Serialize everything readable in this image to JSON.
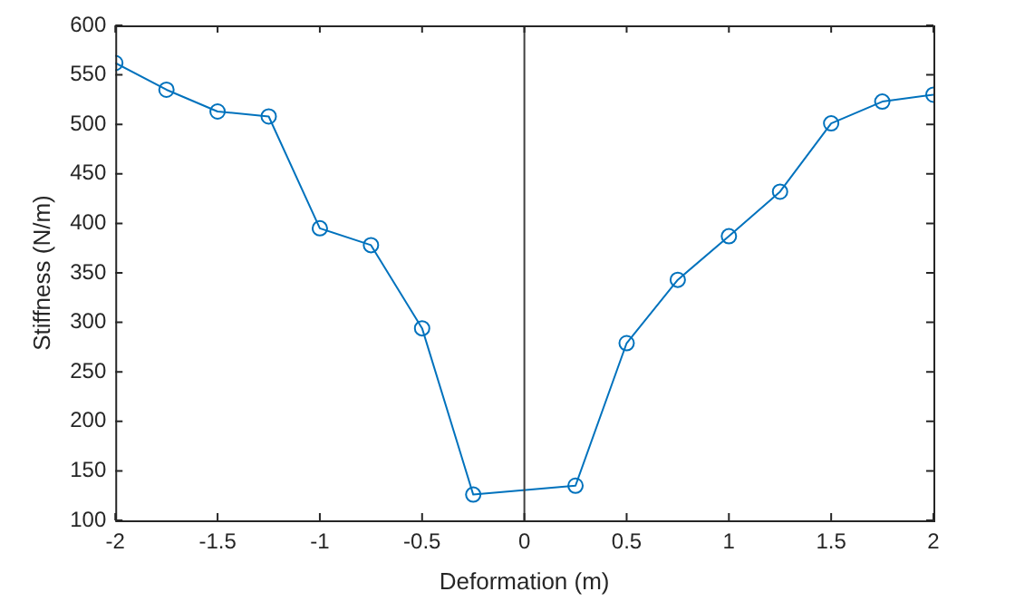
{
  "chart_data": {
    "type": "line",
    "xlabel": "Deformation (m)",
    "ylabel": "Stiffness (N/m)",
    "x": [
      -2,
      -1.75,
      -1.5,
      -1.25,
      -1,
      -0.75,
      -0.5,
      -0.25,
      0.25,
      0.5,
      0.75,
      1,
      1.25,
      1.5,
      1.75,
      2
    ],
    "series": [
      {
        "color": "#0072bd",
        "values": [
          562,
          535,
          513,
          508,
          395,
          378,
          294,
          126,
          135,
          279,
          343,
          387,
          432,
          501,
          523,
          530
        ]
      }
    ],
    "xlim": [
      -2,
      2
    ],
    "xticks": [
      -2,
      -1.5,
      -1,
      -0.5,
      0,
      0.5,
      1,
      1.5,
      2
    ],
    "ylim": [
      100,
      600
    ],
    "yticks": [
      100,
      150,
      200,
      250,
      300,
      350,
      400,
      450,
      500,
      550,
      600
    ],
    "ref_lines": [
      {
        "axis": "x",
        "value": 0,
        "color": "#404040"
      }
    ],
    "grid": false,
    "legend": false,
    "marker": "circle",
    "line_style": "solid"
  }
}
